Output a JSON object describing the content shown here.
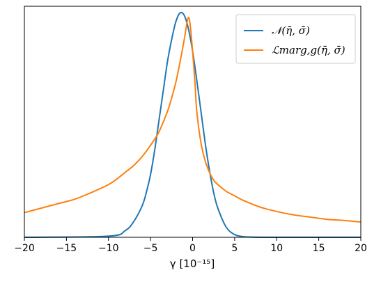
{
  "chart_data": {
    "type": "line",
    "title": "",
    "xlabel": "γ  [10⁻¹⁵]",
    "ylabel": "",
    "xlim": [
      -20,
      20
    ],
    "ylim": [
      0,
      1.03
    ],
    "xticks": [
      "−20",
      "−15",
      "−10",
      "−5",
      "0",
      "5",
      "10",
      "15",
      "20"
    ],
    "yticks": [],
    "grid": false,
    "legend_position": "upper right",
    "series": [
      {
        "name": "𝒩(η̄, σ̄)",
        "color": "#1f77b4",
        "x": [
          -20,
          -10,
          -8,
          -7,
          -6,
          -5.5,
          -5,
          -4.5,
          -4,
          -3.5,
          -3,
          -2.5,
          -2,
          -1.5,
          -1,
          -0.5,
          0,
          0.5,
          1,
          1.5,
          2,
          2.5,
          3,
          4,
          5,
          6,
          7,
          10,
          20
        ],
        "y": [
          0,
          0.005,
          0.03,
          0.07,
          0.14,
          0.2,
          0.28,
          0.39,
          0.52,
          0.65,
          0.78,
          0.88,
          0.96,
          1.0,
          0.99,
          0.93,
          0.83,
          0.7,
          0.56,
          0.42,
          0.3,
          0.2,
          0.13,
          0.045,
          0.012,
          0.003,
          0.001,
          0,
          0
        ]
      },
      {
        "name": "ℒmarg,g(η̄, σ̄)",
        "color": "#ff7f0e",
        "x": [
          -20,
          -18,
          -16,
          -14,
          -12,
          -10,
          -9,
          -8,
          -7,
          -6,
          -5,
          -4,
          -3,
          -2.5,
          -2,
          -1.5,
          -1,
          -0.7,
          -0.5,
          -0.3,
          0,
          0.3,
          0.5,
          1,
          1.5,
          2,
          2.5,
          3,
          4,
          5,
          6,
          8,
          10,
          12,
          14,
          16,
          18,
          20
        ],
        "y": [
          0.11,
          0.13,
          0.15,
          0.17,
          0.2,
          0.235,
          0.26,
          0.29,
          0.32,
          0.36,
          0.41,
          0.47,
          0.56,
          0.62,
          0.69,
          0.78,
          0.88,
          0.95,
          0.98,
          0.95,
          0.83,
          0.68,
          0.56,
          0.42,
          0.34,
          0.29,
          0.255,
          0.235,
          0.205,
          0.185,
          0.165,
          0.135,
          0.115,
          0.1,
          0.09,
          0.08,
          0.075,
          0.068
        ]
      }
    ]
  }
}
